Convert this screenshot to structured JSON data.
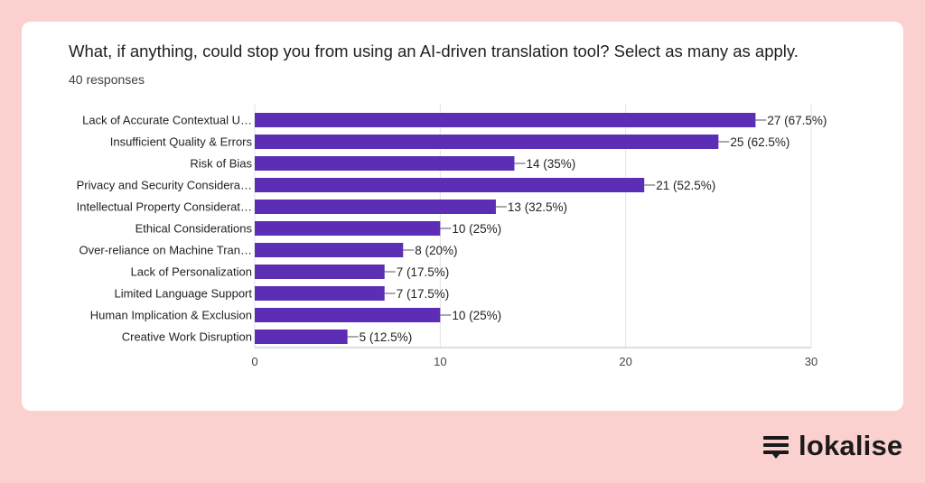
{
  "chart_data": {
    "type": "bar",
    "orientation": "horizontal",
    "title": "What, if anything, could stop you from using an AI-driven translation tool? Select as many as apply.",
    "subtitle": "40 responses",
    "categories": [
      "Lack of Accurate Contextual U…",
      "Insufficient Quality & Errors",
      "Risk of Bias",
      "Privacy and Security Considera…",
      "Intellectual Property Considerat…",
      "Ethical Considerations",
      "Over-reliance on Machine Tran…",
      "Lack of Personalization",
      "Limited Language Support",
      "Human Implication & Exclusion",
      "Creative Work Disruption"
    ],
    "values": [
      27,
      25,
      14,
      21,
      13,
      10,
      8,
      7,
      7,
      10,
      5
    ],
    "data_labels": [
      "27 (67.5%)",
      "25 (62.5%)",
      "14 (35%)",
      "21 (52.5%)",
      "13 (32.5%)",
      "10 (25%)",
      "8 (20%)",
      "7 (17.5%)",
      "7 (17.5%)",
      "10 (25%)",
      "5 (12.5%)"
    ],
    "xticks": [
      0,
      10,
      20,
      30
    ],
    "xlim": [
      0,
      30
    ],
    "grid": true,
    "bar_color": "#5b2eb5"
  },
  "brand": {
    "name": "lokalise",
    "icon": "lokalise-logo-icon"
  }
}
